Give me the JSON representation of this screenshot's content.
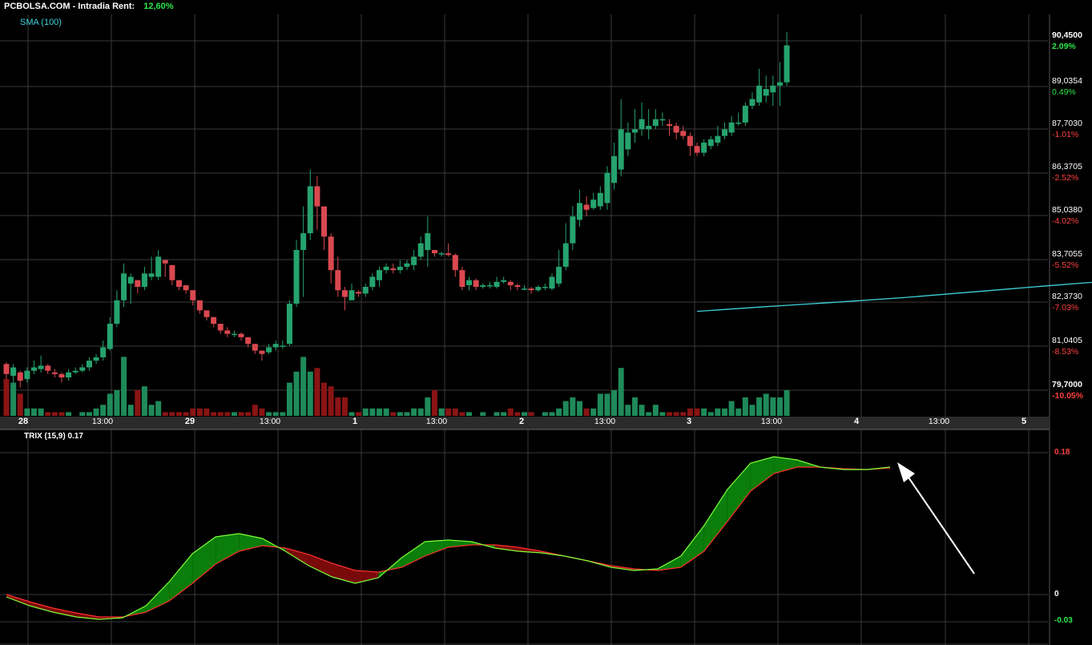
{
  "header": {
    "site": "PCBOLSA.COM",
    "sep": "-",
    "mode": "Intradia",
    "rent_label": "Rent:",
    "rent_value": "12,60%"
  },
  "indicators": {
    "sma_label": "SMA (100)",
    "trix_label": "TRIX (15,9) 0.17"
  },
  "price_axis": [
    {
      "price": "90,4500",
      "pct": "2.09%",
      "up": true
    },
    {
      "price": "89,0354",
      "pct": "0.49%",
      "up": true
    },
    {
      "price": "87,7030",
      "pct": "-1.01%",
      "up": false
    },
    {
      "price": "86,3705",
      "pct": "-2.52%",
      "up": false
    },
    {
      "price": "85,0380",
      "pct": "-4.02%",
      "up": false
    },
    {
      "price": "83,7055",
      "pct": "-5.52%",
      "up": false
    },
    {
      "price": "82,3730",
      "pct": "-7.03%",
      "up": false
    },
    {
      "price": "81,0405",
      "pct": "-8.53%",
      "up": false
    },
    {
      "price": "79,7000",
      "pct": "-10.05%",
      "up": false
    }
  ],
  "trix_axis": [
    {
      "label": "0.18",
      "color": "#ff4040"
    },
    {
      "label": "0",
      "color": "#ffffff"
    },
    {
      "label": "-0.03",
      "color": "#2ee84a"
    }
  ],
  "time_axis": [
    {
      "label": "28",
      "major": true
    },
    {
      "label": "13:00",
      "major": false
    },
    {
      "label": "29",
      "major": true
    },
    {
      "label": "13:00",
      "major": false
    },
    {
      "label": "1",
      "major": true
    },
    {
      "label": "13:00",
      "major": false
    },
    {
      "label": "2",
      "major": true
    },
    {
      "label": "13:00",
      "major": false
    },
    {
      "label": "3",
      "major": true
    },
    {
      "label": "13:00",
      "major": false
    },
    {
      "label": "4",
      "major": true
    },
    {
      "label": "13:00",
      "major": false
    },
    {
      "label": "5",
      "major": true
    }
  ],
  "colors": {
    "up": "#26a36e",
    "down": "#d9484f",
    "vol_up": "#1f8a5a",
    "vol_down": "#8a1414",
    "sma": "#3fd0d8",
    "trix": "#7cff3a",
    "signal": "#ff3030",
    "fill_up": "#0a7d0a",
    "fill_down": "#7a0a0a",
    "grid": "#3a3a3a",
    "arrow": "#ffffff"
  },
  "chart_data": [
    {
      "type": "candlestick",
      "ylim": [
        79.7,
        90.45
      ],
      "candles": [
        [
          80.6,
          80.3,
          80.65,
          80.1,
          10
        ],
        [
          80.25,
          80.5,
          80.6,
          80.0,
          9
        ],
        [
          80.35,
          80.1,
          80.4,
          79.9,
          6
        ],
        [
          80.15,
          80.4,
          80.5,
          80.05,
          2
        ],
        [
          80.4,
          80.5,
          80.7,
          80.3,
          2
        ],
        [
          80.45,
          80.55,
          80.85,
          80.35,
          2
        ],
        [
          80.55,
          80.4,
          80.6,
          80.3,
          1
        ],
        [
          80.35,
          80.3,
          80.45,
          80.2,
          1
        ],
        [
          80.3,
          80.2,
          80.35,
          80.05,
          1
        ],
        [
          80.2,
          80.35,
          80.45,
          80.1,
          1
        ],
        [
          80.35,
          80.4,
          80.5,
          80.3,
          0
        ],
        [
          80.4,
          80.5,
          80.6,
          80.35,
          1
        ],
        [
          80.5,
          80.7,
          80.8,
          80.4,
          1
        ],
        [
          80.7,
          80.8,
          80.9,
          80.6,
          2
        ],
        [
          80.8,
          81.1,
          81.3,
          80.7,
          3
        ],
        [
          81.05,
          81.8,
          82.0,
          81.0,
          6
        ],
        [
          81.8,
          82.5,
          82.8,
          81.7,
          7
        ],
        [
          82.5,
          83.3,
          83.6,
          82.3,
          16
        ],
        [
          83.0,
          83.2,
          83.3,
          82.4,
          3
        ],
        [
          83.1,
          82.9,
          83.1,
          82.7,
          7
        ],
        [
          82.9,
          83.3,
          83.5,
          82.8,
          8
        ],
        [
          83.2,
          83.3,
          83.8,
          83.1,
          3
        ],
        [
          83.2,
          83.8,
          84.0,
          83.1,
          4
        ],
        [
          83.7,
          83.6,
          83.7,
          83.2,
          1
        ],
        [
          83.55,
          83.1,
          83.2,
          82.95,
          1
        ],
        [
          83.1,
          82.9,
          83.1,
          82.8,
          1
        ],
        [
          82.95,
          82.8,
          82.9,
          82.7,
          1
        ],
        [
          82.8,
          82.5,
          82.8,
          82.35,
          2
        ],
        [
          82.5,
          82.2,
          82.4,
          82.1,
          2
        ],
        [
          82.2,
          82.0,
          82.2,
          81.9,
          2
        ],
        [
          82.0,
          81.8,
          82.0,
          81.7,
          1
        ],
        [
          81.8,
          81.6,
          81.8,
          81.5,
          1
        ],
        [
          81.6,
          81.5,
          81.7,
          81.4,
          1
        ],
        [
          81.5,
          81.5,
          81.6,
          81.4,
          1
        ],
        [
          81.5,
          81.4,
          81.55,
          81.3,
          1
        ],
        [
          81.4,
          81.2,
          81.4,
          81.1,
          1
        ],
        [
          81.2,
          81.0,
          81.2,
          80.9,
          3
        ],
        [
          81.0,
          80.9,
          81.0,
          80.7,
          2
        ],
        [
          80.95,
          81.1,
          81.2,
          80.9,
          1
        ],
        [
          81.1,
          81.2,
          81.3,
          81.0,
          1
        ],
        [
          81.15,
          81.15,
          81.3,
          81.05,
          1
        ],
        [
          81.2,
          82.4,
          82.5,
          81.15,
          9
        ],
        [
          82.4,
          84.0,
          84.3,
          82.3,
          12
        ],
        [
          84.0,
          84.5,
          85.3,
          82.6,
          16
        ],
        [
          84.5,
          85.9,
          86.4,
          84.3,
          12
        ],
        [
          85.9,
          85.3,
          86.2,
          84.6,
          13
        ],
        [
          85.3,
          84.4,
          85.2,
          84.0,
          9
        ],
        [
          84.4,
          83.4,
          84.5,
          83.0,
          8
        ],
        [
          83.4,
          82.8,
          83.8,
          82.6,
          5
        ],
        [
          82.8,
          82.6,
          82.9,
          82.2,
          5
        ],
        [
          82.5,
          82.8,
          83.0,
          82.5,
          1
        ],
        [
          82.75,
          82.7,
          82.8,
          82.6,
          1
        ],
        [
          82.7,
          82.9,
          83.0,
          82.6,
          2
        ],
        [
          82.9,
          83.2,
          83.3,
          82.8,
          2
        ],
        [
          83.1,
          83.4,
          83.5,
          82.9,
          2
        ],
        [
          83.4,
          83.5,
          83.6,
          83.3,
          2
        ],
        [
          83.45,
          83.4,
          83.6,
          83.3,
          1
        ],
        [
          83.4,
          83.5,
          83.7,
          83.3,
          1
        ],
        [
          83.5,
          83.6,
          83.7,
          83.4,
          1
        ],
        [
          83.55,
          83.8,
          84.0,
          83.4,
          2
        ],
        [
          83.8,
          84.2,
          84.4,
          83.7,
          2
        ],
        [
          84.0,
          84.5,
          85.0,
          83.5,
          5
        ],
        [
          84.0,
          83.9,
          84.0,
          83.8,
          7
        ],
        [
          83.9,
          83.9,
          83.95,
          83.8,
          2
        ],
        [
          83.9,
          83.85,
          84.2,
          83.8,
          2
        ],
        [
          83.85,
          83.4,
          83.9,
          83.2,
          2
        ],
        [
          83.4,
          82.9,
          83.5,
          82.8,
          1
        ],
        [
          82.95,
          83.1,
          83.2,
          82.8,
          1
        ],
        [
          83.1,
          82.9,
          83.15,
          82.8,
          0
        ],
        [
          82.9,
          82.95,
          83.0,
          82.85,
          1
        ],
        [
          82.95,
          82.95,
          83.05,
          82.85,
          0
        ],
        [
          82.9,
          83.05,
          83.2,
          82.85,
          1
        ],
        [
          83.05,
          83.1,
          83.2,
          83.0,
          1
        ],
        [
          83.05,
          82.95,
          83.1,
          82.8,
          2
        ],
        [
          82.95,
          82.9,
          83.0,
          82.8,
          1
        ],
        [
          82.85,
          82.85,
          82.95,
          82.8,
          1
        ],
        [
          82.85,
          82.8,
          82.9,
          82.7,
          1
        ],
        [
          82.8,
          82.9,
          82.95,
          82.75,
          0
        ],
        [
          82.9,
          82.9,
          83.0,
          82.8,
          1
        ],
        [
          82.85,
          83.2,
          83.3,
          82.8,
          1
        ],
        [
          83.0,
          83.5,
          84.0,
          82.9,
          2
        ],
        [
          83.5,
          84.2,
          84.8,
          83.4,
          4
        ],
        [
          84.2,
          85.0,
          85.3,
          84.0,
          5
        ],
        [
          84.9,
          85.4,
          85.8,
          84.7,
          4
        ],
        [
          85.35,
          85.2,
          85.6,
          85.0,
          2
        ],
        [
          85.25,
          85.5,
          85.7,
          85.2,
          2
        ],
        [
          85.3,
          85.7,
          85.9,
          85.2,
          6
        ],
        [
          85.4,
          86.3,
          86.5,
          85.2,
          6
        ],
        [
          86.0,
          86.8,
          87.2,
          85.8,
          7
        ],
        [
          86.4,
          87.6,
          88.5,
          86.2,
          13
        ],
        [
          87.0,
          87.5,
          87.8,
          86.8,
          3
        ],
        [
          87.5,
          87.6,
          88.2,
          87.2,
          5
        ],
        [
          87.6,
          87.9,
          88.4,
          87.4,
          3
        ],
        [
          87.6,
          87.7,
          88.2,
          87.3,
          1
        ],
        [
          87.7,
          87.9,
          88.2,
          87.6,
          3
        ],
        [
          87.9,
          87.9,
          88.1,
          87.7,
          1
        ],
        [
          87.75,
          87.7,
          87.9,
          87.4,
          1
        ],
        [
          87.7,
          87.5,
          87.8,
          87.3,
          1
        ],
        [
          87.55,
          87.4,
          87.7,
          87.3,
          1
        ],
        [
          87.4,
          87.1,
          87.5,
          86.8,
          2
        ],
        [
          87.1,
          86.9,
          87.2,
          86.8,
          2
        ],
        [
          86.9,
          87.2,
          87.3,
          86.8,
          2
        ],
        [
          87.1,
          87.3,
          87.4,
          87.0,
          1
        ],
        [
          87.2,
          87.4,
          87.7,
          87.1,
          2
        ],
        [
          87.4,
          87.6,
          87.8,
          87.3,
          2
        ],
        [
          87.5,
          87.8,
          88.0,
          87.4,
          4
        ],
        [
          87.8,
          87.8,
          88.1,
          87.7,
          2
        ],
        [
          87.8,
          88.3,
          88.4,
          87.7,
          5
        ],
        [
          88.3,
          88.5,
          88.7,
          88.2,
          3
        ],
        [
          88.4,
          88.9,
          89.4,
          88.3,
          5
        ],
        [
          88.6,
          88.8,
          89.2,
          88.4,
          6
        ],
        [
          88.7,
          88.9,
          89.2,
          88.3,
          5
        ],
        [
          88.9,
          89.0,
          89.6,
          88.3,
          5
        ],
        [
          89.0,
          90.1,
          90.5,
          88.9,
          7
        ]
      ]
    },
    {
      "type": "line",
      "name": "SMA (100)",
      "x": [
        100,
        110,
        120,
        130,
        140,
        150,
        160,
        170,
        180,
        186
      ],
      "values": [
        82.17,
        82.31,
        82.44,
        82.58,
        82.75,
        82.92,
        83.08,
        83.25,
        83.42,
        83.55
      ]
    },
    {
      "type": "line",
      "ylim": [
        -0.05,
        0.2
      ],
      "series": [
        {
          "name": "TRIX",
          "values": [
            0.001,
            -0.01,
            -0.018,
            -0.024,
            -0.027,
            -0.025,
            -0.01,
            0.02,
            0.055,
            0.076,
            0.08,
            0.074,
            0.058,
            0.04,
            0.026,
            0.018,
            0.025,
            0.05,
            0.07,
            0.072,
            0.07,
            0.062,
            0.058,
            0.056,
            0.052,
            0.046,
            0.038,
            0.034,
            0.036,
            0.052,
            0.09,
            0.135,
            0.168,
            0.176,
            0.172,
            0.163,
            0.16,
            0.16,
            0.163
          ]
        },
        {
          "name": "Signal",
          "values": [
            0.004,
            -0.005,
            -0.013,
            -0.019,
            -0.024,
            -0.024,
            -0.018,
            -0.004,
            0.018,
            0.042,
            0.058,
            0.065,
            0.062,
            0.054,
            0.043,
            0.034,
            0.032,
            0.038,
            0.052,
            0.063,
            0.066,
            0.066,
            0.063,
            0.058,
            0.052,
            0.046,
            0.04,
            0.036,
            0.034,
            0.038,
            0.058,
            0.095,
            0.133,
            0.155,
            0.163,
            0.163,
            0.161,
            0.16,
            0.162
          ]
        }
      ]
    }
  ]
}
